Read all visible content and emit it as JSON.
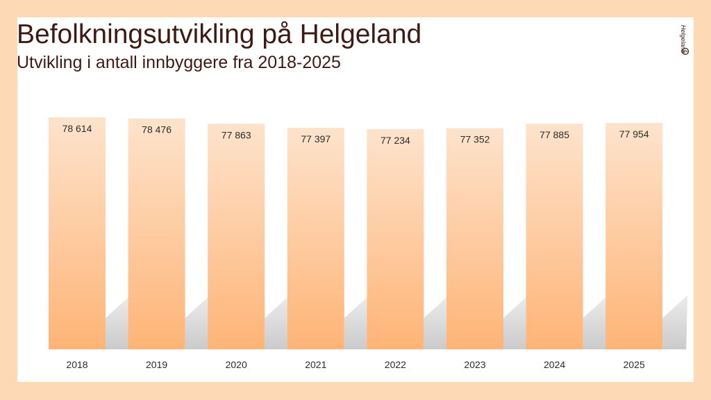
{
  "title": "Befolkningsutvikling på Helgeland",
  "subtitle": "Utvikling i antall innbyggere fra 2018-2025",
  "logo": {
    "text": "Helgeland"
  },
  "colors": {
    "page_bg": "#fdd9b5",
    "bar_top": "#fde3cc",
    "bar_bottom": "#ffb476",
    "shadow": "#c8c8c8",
    "text": "#3d1a12"
  },
  "chart_data": {
    "type": "bar",
    "categories": [
      "2018",
      "2019",
      "2020",
      "2021",
      "2022",
      "2023",
      "2024",
      "2025"
    ],
    "values": [
      78614,
      78476,
      77863,
      77397,
      77234,
      77352,
      77885,
      77954
    ],
    "labels": [
      "78 614",
      "78 476",
      "77 863",
      "77 397",
      "77 234",
      "77 352",
      "77 885",
      "77 954"
    ],
    "title": "Befolkningsutvikling på Helgeland",
    "subtitle": "Utvikling i antall innbyggere fra 2018-2025",
    "xlabel": "",
    "ylabel": "",
    "grid": false,
    "legend": "none"
  }
}
